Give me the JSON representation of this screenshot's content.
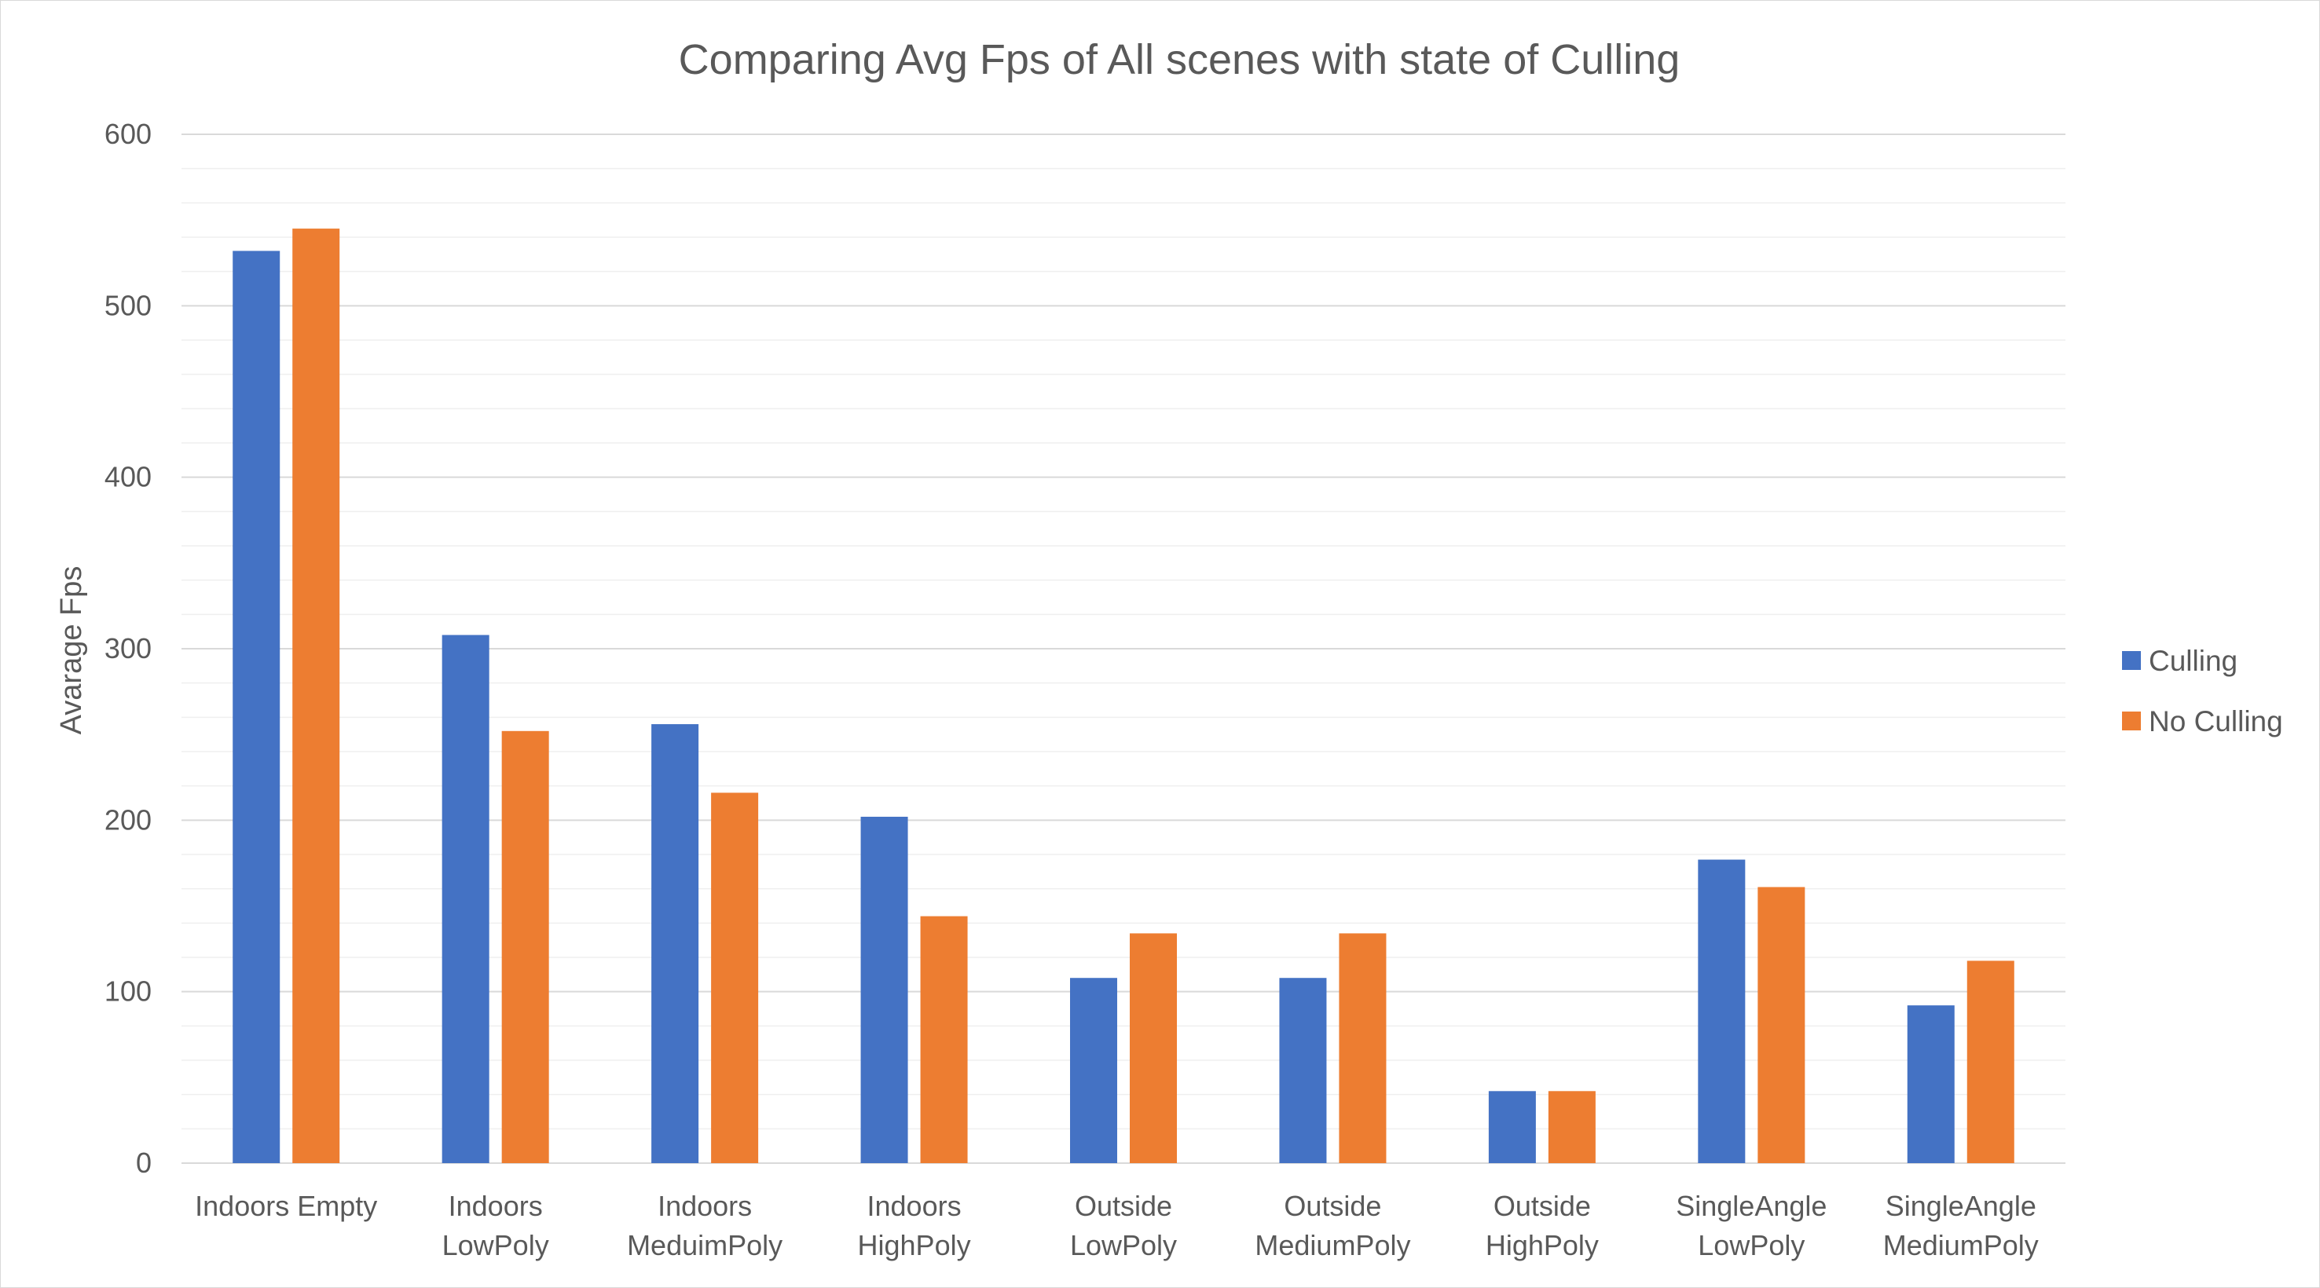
{
  "chart_data": {
    "type": "bar",
    "title": "Comparing Avg Fps of All scenes with state of Culling",
    "xlabel": "",
    "ylabel": "Avarage Fps",
    "ylim": [
      0,
      600
    ],
    "yticks": [
      "0",
      "100",
      "200",
      "300",
      "400",
      "500",
      "600"
    ],
    "grid": "major and minor horizontal",
    "legend_position": "right",
    "categories": [
      [
        "Indoors Empty"
      ],
      [
        "Indoors",
        "LowPoly"
      ],
      [
        "Indoors",
        "MeduimPoly"
      ],
      [
        "Indoors",
        "HighPoly"
      ],
      [
        "Outside",
        "LowPoly"
      ],
      [
        "Outside",
        "MediumPoly"
      ],
      [
        "Outside",
        "HighPoly"
      ],
      [
        "SingleAngle",
        "LowPoly"
      ],
      [
        "SingleAngle",
        "MediumPoly"
      ]
    ],
    "series": [
      {
        "name": "Culling",
        "color": "#4472c4",
        "values": [
          532,
          308,
          256,
          202,
          108,
          108,
          42,
          177,
          92
        ]
      },
      {
        "name": "No Culling",
        "color": "#ed7d31",
        "values": [
          545,
          252,
          216,
          144,
          134,
          134,
          42,
          161,
          118
        ]
      }
    ]
  }
}
